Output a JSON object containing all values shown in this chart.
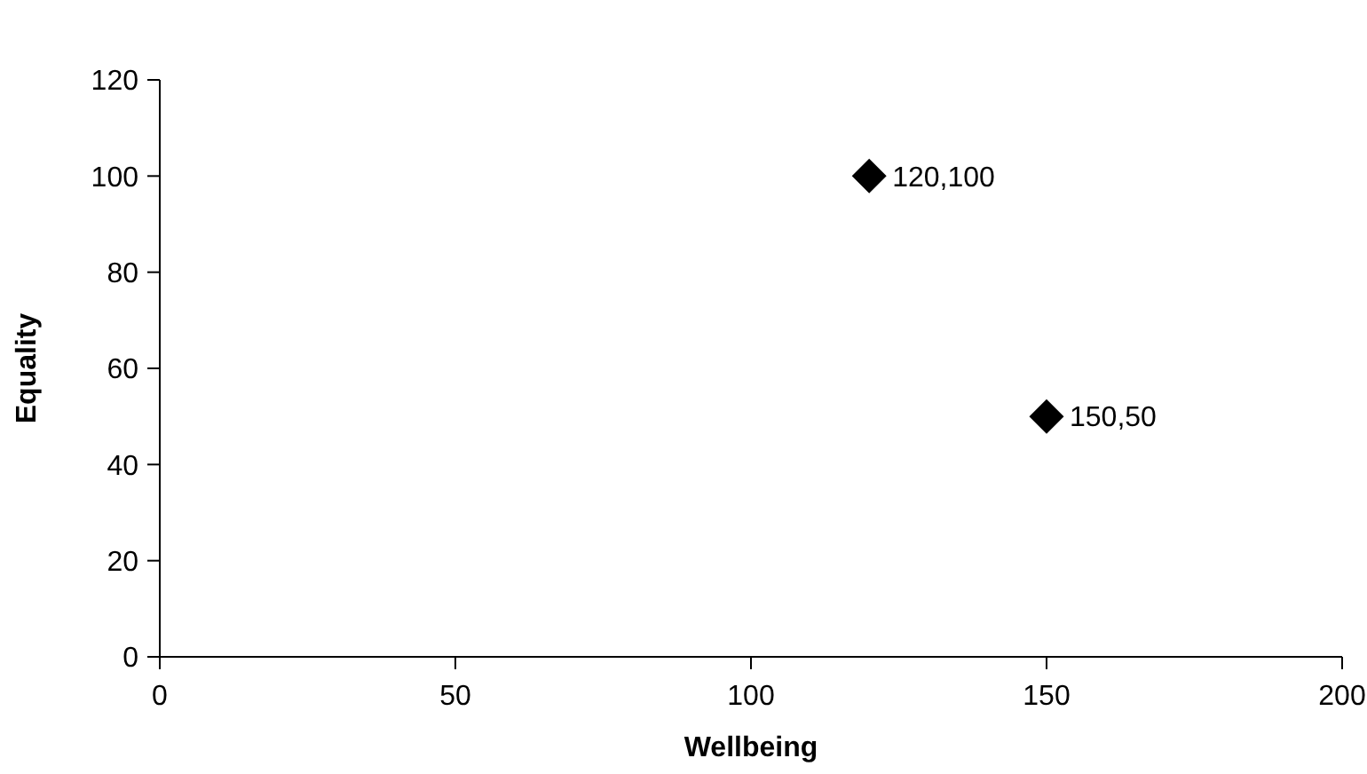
{
  "chart_data": {
    "type": "scatter",
    "xlabel": "Wellbeing",
    "ylabel": "Equality",
    "x": [
      120,
      150
    ],
    "values": [
      100,
      50
    ],
    "color": "#000000",
    "marker": "diamond",
    "annotations": [
      {
        "text": "120,100",
        "x": 120,
        "y": 100
      },
      {
        "text": "150,50",
        "x": 150,
        "y": 50
      }
    ],
    "xlim": [
      0,
      200
    ],
    "xticks": [
      0,
      50,
      100,
      150,
      200
    ],
    "ylim": [
      0,
      120
    ],
    "yticks": [
      0,
      20,
      40,
      60,
      80,
      100,
      120
    ],
    "grid": false
  }
}
